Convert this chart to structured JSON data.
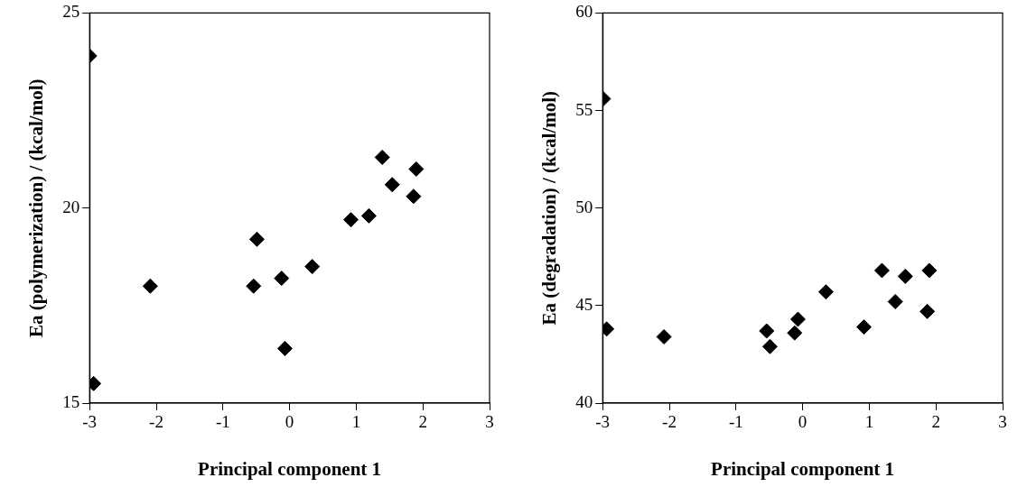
{
  "chart_data": [
    {
      "type": "scatter",
      "xlabel": "Principal component 1",
      "ylabel": "Ea (polymerization) / (kcal/mol)",
      "marker": "diamond",
      "grid": false,
      "legend": false,
      "x": [
        -3,
        -2.94,
        -2.09,
        -0.54,
        -0.49,
        -0.12,
        -0.07,
        0.34,
        0.92,
        1.19,
        1.39,
        1.54,
        1.9,
        1.86
      ],
      "series": [
        {
          "color": "#000000",
          "values": [
            23.9,
            15.5,
            18.0,
            18.0,
            19.2,
            18.2,
            16.4,
            18.5,
            19.7,
            19.8,
            21.3,
            20.6,
            21.0,
            20.3
          ]
        }
      ],
      "xlim": [
        -3,
        3
      ],
      "xticks": [
        -3,
        -2,
        -1,
        0,
        1,
        2,
        3
      ],
      "ylim": [
        15,
        25
      ],
      "yticks": [
        15,
        20,
        25
      ]
    },
    {
      "type": "scatter",
      "xlabel": "Principal component 1",
      "ylabel": "Ea (degradation) / (kcal/mol)",
      "marker": "diamond",
      "grid": false,
      "legend": false,
      "x": [
        -2.99,
        -2.94,
        -2.08,
        -0.54,
        -0.49,
        -0.12,
        -0.07,
        0.35,
        0.92,
        1.19,
        1.39,
        1.54,
        1.9,
        1.87
      ],
      "series": [
        {
          "color": "#000000",
          "values": [
            55.6,
            43.8,
            43.4,
            43.7,
            42.9,
            43.6,
            44.3,
            45.7,
            43.9,
            46.8,
            45.2,
            46.5,
            46.8,
            44.7
          ]
        }
      ],
      "xlim": [
        -3,
        3
      ],
      "xticks": [
        -3,
        -2,
        -1,
        0,
        1,
        2,
        3
      ],
      "ylim": [
        40,
        60
      ],
      "yticks": [
        40,
        45,
        50,
        55,
        60
      ]
    }
  ]
}
